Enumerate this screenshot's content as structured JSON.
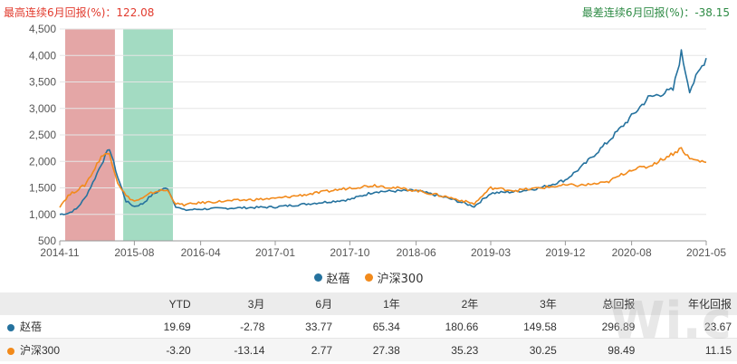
{
  "header": {
    "best_label": "最高连续6月回报(%)",
    "best_value": "122.08",
    "worst_label": "最差连续6月回报(%)",
    "worst_value": "-38.15"
  },
  "colors": {
    "series_fund": "#25729e",
    "series_index": "#f28a1b",
    "band_best": "#e3a1a1",
    "band_worst": "#9ed9bf",
    "best_text": "#e23b2e",
    "worst_text": "#2e8b45"
  },
  "chart_data": {
    "type": "line",
    "x_ticks": [
      "2014-11",
      "2015-08",
      "2016-04",
      "2017-01",
      "2017-10",
      "2018-06",
      "2019-03",
      "2019-12",
      "2020-08",
      "2021-05"
    ],
    "ylim": [
      500,
      4500
    ],
    "y_ticks": [
      500,
      1000,
      1500,
      2000,
      2500,
      3000,
      3500,
      4000,
      4500
    ],
    "y_tick_labels": [
      "500",
      "1,000",
      "1,500",
      "2,000",
      "2,500",
      "3,000",
      "3,500",
      "4,000",
      "4,500"
    ],
    "grid": true,
    "legend_position": "bottom",
    "highlight_bands": [
      {
        "name": "best",
        "start": "2014-11",
        "end": "2015-05"
      },
      {
        "name": "worst",
        "start": "2015-06",
        "end": "2015-12"
      }
    ],
    "series": [
      {
        "name": "赵蓓",
        "dates": [
          "2014-11",
          "2014-12",
          "2015-01",
          "2015-02",
          "2015-03",
          "2015-04",
          "2015-05",
          "2015-06",
          "2015-07",
          "2015-08",
          "2015-09",
          "2015-10",
          "2015-11",
          "2015-12",
          "2016-01",
          "2016-02",
          "2016-04",
          "2016-08",
          "2017-01",
          "2017-05",
          "2017-10",
          "2018-01",
          "2018-06",
          "2018-10",
          "2019-01",
          "2019-03",
          "2019-06",
          "2019-09",
          "2019-12",
          "2020-02",
          "2020-05",
          "2020-08",
          "2020-10",
          "2021-01",
          "2021-02",
          "2021-03",
          "2021-05"
        ],
        "values": [
          1000,
          1020,
          1100,
          1300,
          1600,
          1950,
          2250,
          1700,
          1250,
          1150,
          1200,
          1350,
          1450,
          1500,
          1150,
          1080,
          1100,
          1120,
          1140,
          1200,
          1280,
          1430,
          1450,
          1300,
          1150,
          1400,
          1430,
          1500,
          1650,
          1900,
          2350,
          2850,
          3200,
          3350,
          4050,
          3350,
          3950
        ]
      },
      {
        "name": "沪深300",
        "dates": [
          "2014-11",
          "2014-12",
          "2015-01",
          "2015-02",
          "2015-03",
          "2015-04",
          "2015-05",
          "2015-06",
          "2015-07",
          "2015-08",
          "2015-09",
          "2015-10",
          "2015-11",
          "2015-12",
          "2016-01",
          "2016-02",
          "2016-04",
          "2016-08",
          "2017-01",
          "2017-05",
          "2017-10",
          "2018-01",
          "2018-06",
          "2018-10",
          "2019-01",
          "2019-03",
          "2019-06",
          "2019-09",
          "2019-12",
          "2020-02",
          "2020-05",
          "2020-08",
          "2020-10",
          "2021-01",
          "2021-02",
          "2021-03",
          "2021-05"
        ],
        "values": [
          1150,
          1350,
          1450,
          1550,
          1800,
          2100,
          2150,
          1600,
          1350,
          1250,
          1300,
          1400,
          1450,
          1450,
          1200,
          1180,
          1220,
          1260,
          1300,
          1380,
          1500,
          1550,
          1450,
          1320,
          1200,
          1500,
          1450,
          1500,
          1550,
          1550,
          1600,
          1850,
          1900,
          2150,
          2250,
          2050,
          1980
        ]
      }
    ]
  },
  "table": {
    "headers": [
      "",
      "YTD",
      "3月",
      "6月",
      "1年",
      "2年",
      "3年",
      "总回报",
      "年化回报"
    ],
    "rows": [
      {
        "name": "赵蓓",
        "values": [
          "19.69",
          "-2.78",
          "33.77",
          "65.34",
          "180.66",
          "149.58",
          "296.89",
          "23.67"
        ]
      },
      {
        "name": "沪深300",
        "values": [
          "-3.20",
          "-13.14",
          "2.77",
          "27.38",
          "35.23",
          "30.25",
          "98.49",
          "11.15"
        ]
      }
    ]
  },
  "watermark": "Wi.c"
}
